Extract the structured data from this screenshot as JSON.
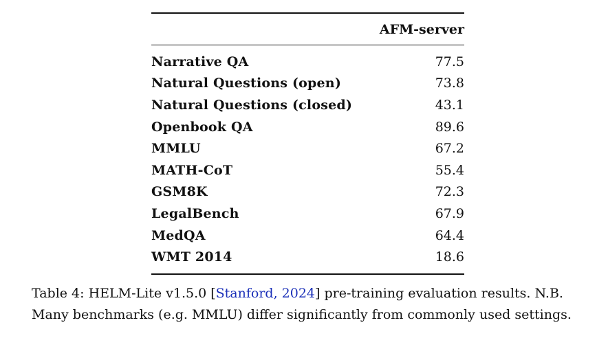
{
  "table": {
    "column_header": "AFM-server",
    "rows": [
      {
        "name": "Narrative QA",
        "value": "77.5"
      },
      {
        "name": "Natural Questions (open)",
        "value": "73.8"
      },
      {
        "name": "Natural Questions (closed)",
        "value": "43.1"
      },
      {
        "name": "Openbook QA",
        "value": "89.6"
      },
      {
        "name": "MMLU",
        "value": "67.2"
      },
      {
        "name": "MATH-CoT",
        "value": "55.4"
      },
      {
        "name": "GSM8K",
        "value": "72.3"
      },
      {
        "name": "LegalBench",
        "value": "67.9"
      },
      {
        "name": "MedQA",
        "value": "64.4"
      },
      {
        "name": "WMT 2014",
        "value": "18.6"
      }
    ]
  },
  "caption": {
    "prefix": "Table 4: HELM-Lite v1.5.0 [",
    "citation": "Stanford, 2024",
    "suffix": "] pre-training evaluation results. N.B. Many benchmarks (e.g. MMLU) differ significantly from commonly used settings."
  },
  "colors": {
    "citation_link": "#1a2fb8",
    "text": "#111111"
  }
}
